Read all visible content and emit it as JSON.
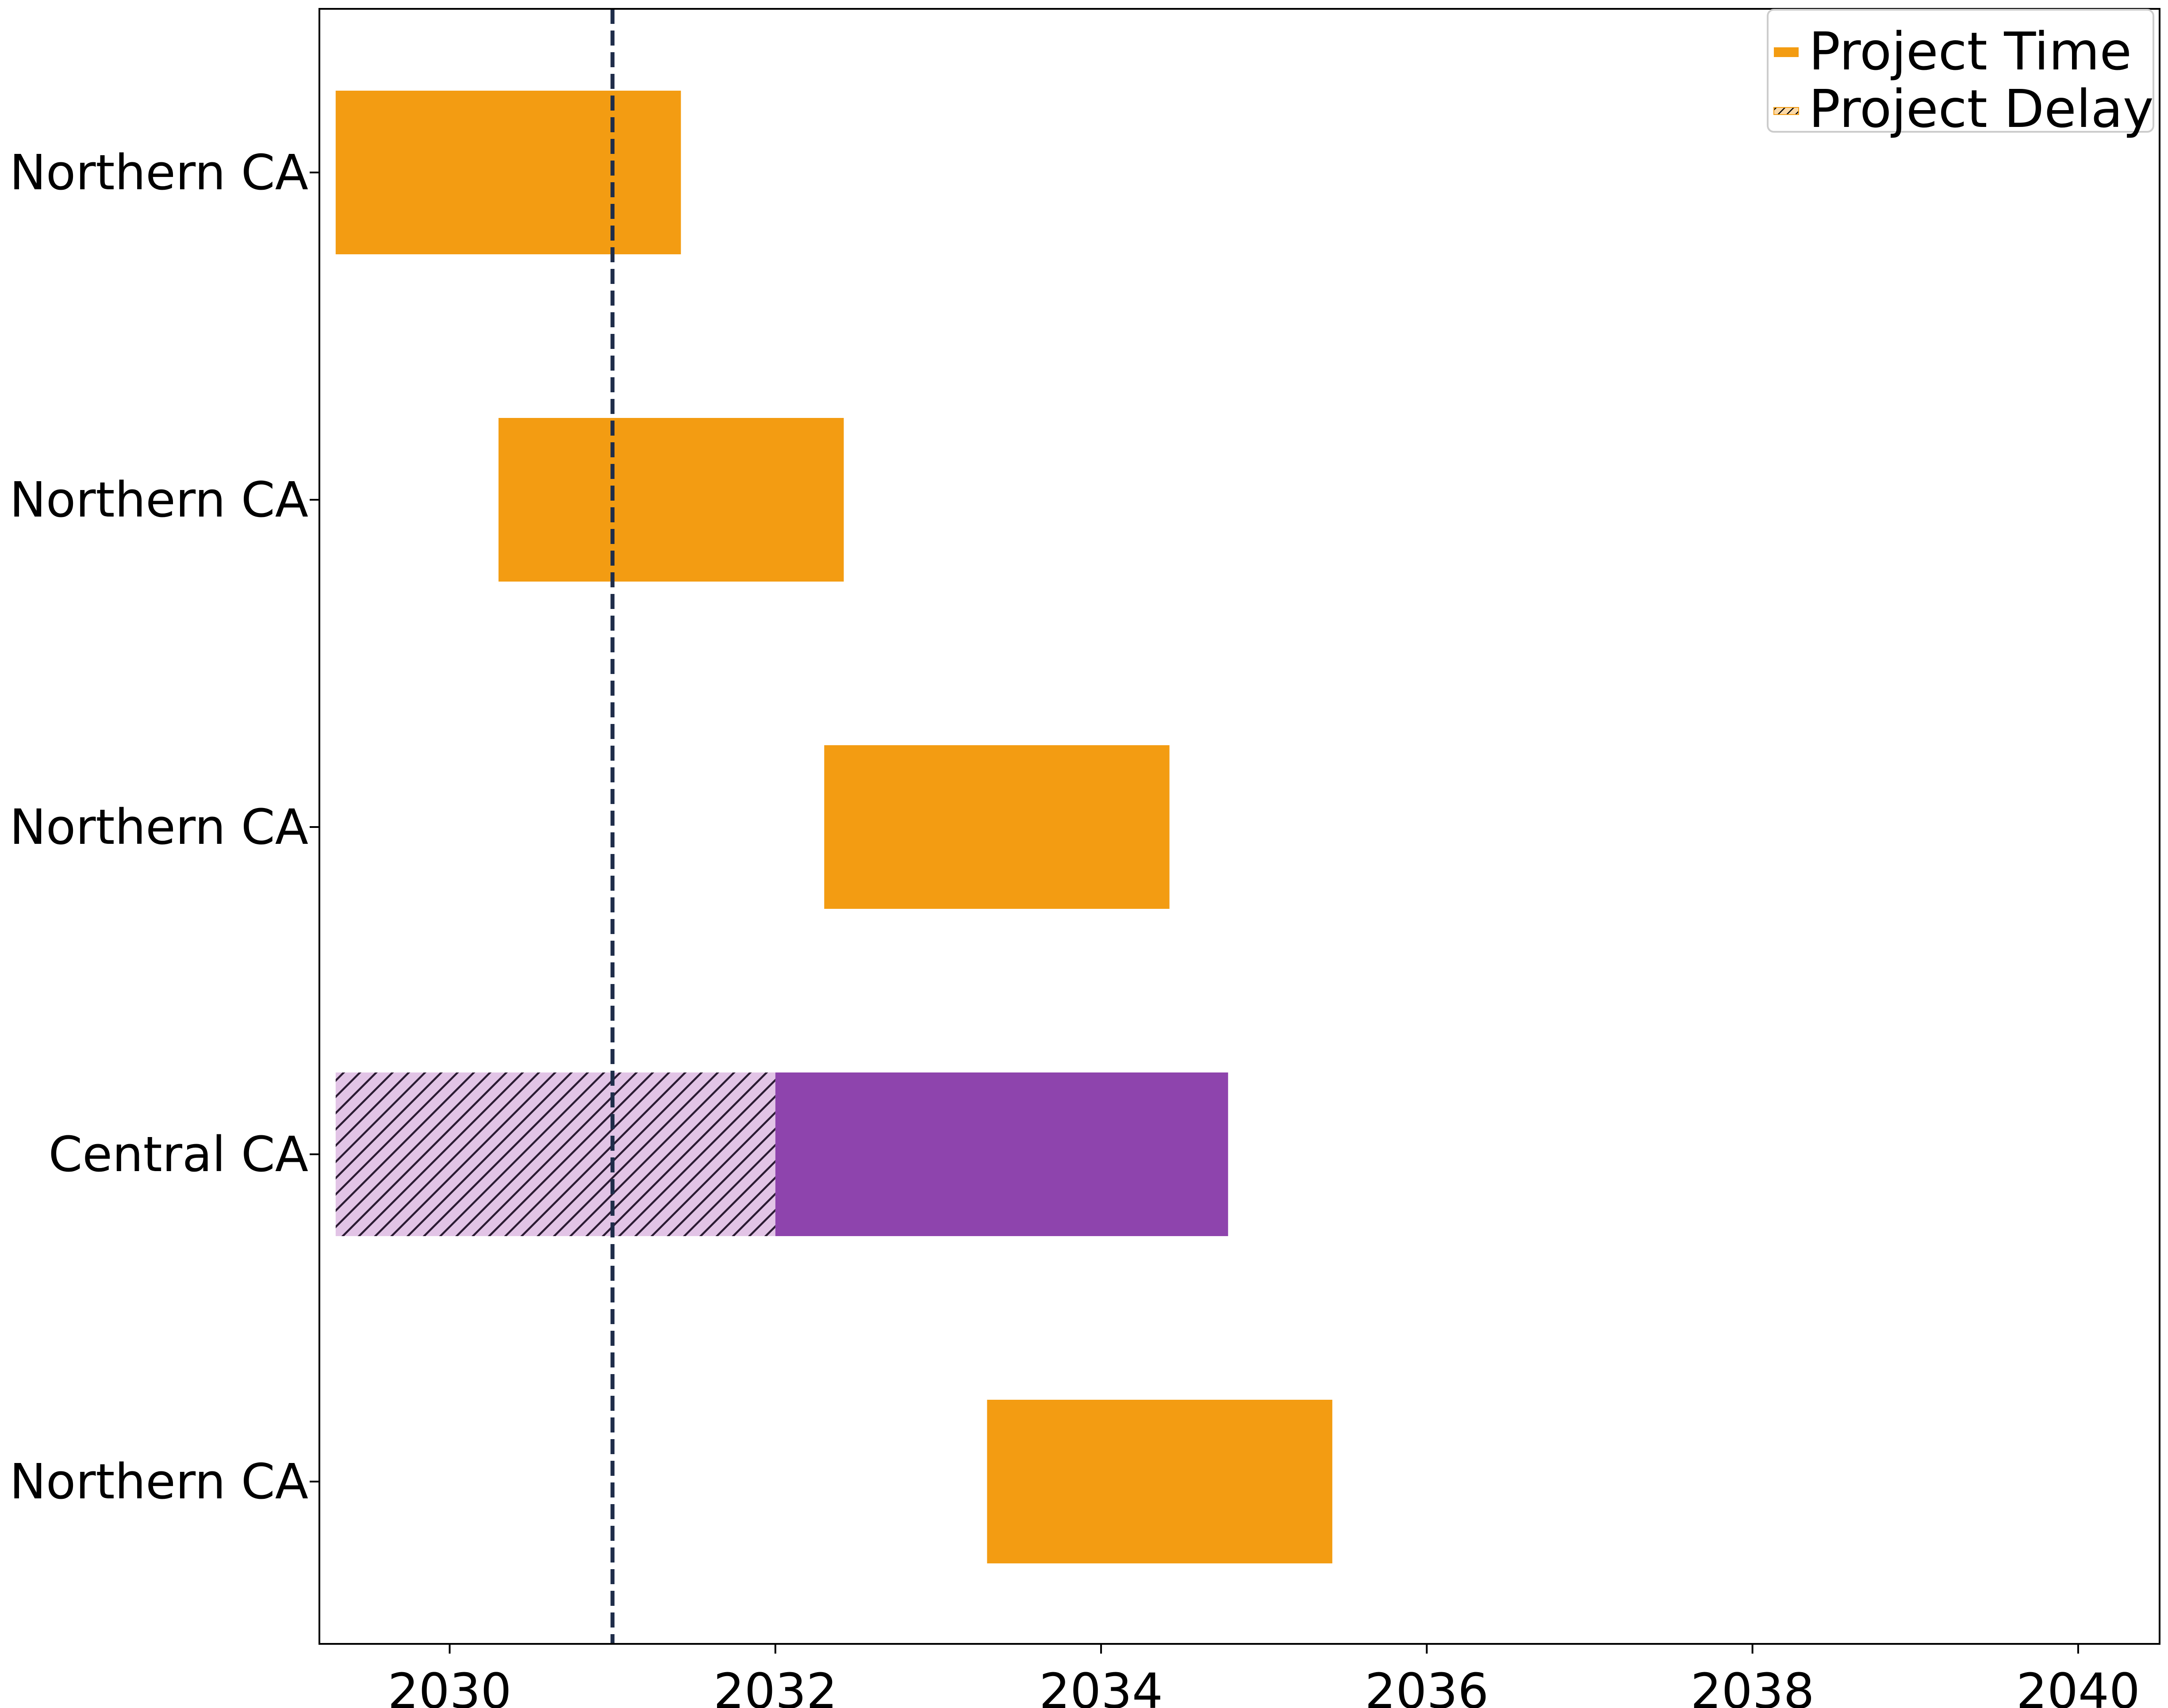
{
  "chart_data": {
    "type": "bar",
    "orientation": "horizontal",
    "title": "",
    "xlabel": "",
    "ylabel": "",
    "xlim": [
      2029.2,
      2040.5
    ],
    "xticks": [
      2030,
      2032,
      2034,
      2036,
      2038,
      2040
    ],
    "xtick_labels": [
      "2030",
      "2032",
      "2034",
      "2036",
      "2038",
      "2040"
    ],
    "grid": false,
    "reference_line": {
      "x": 2031.0,
      "style": "dashed",
      "color": "#1f2d4a"
    },
    "rows": [
      {
        "label": "Northern CA",
        "delay": null,
        "start": 2029.3,
        "end": 2031.42,
        "color": "#f39c12"
      },
      {
        "label": "Northern CA",
        "delay": null,
        "start": 2030.3,
        "end": 2032.42,
        "color": "#f39c12"
      },
      {
        "label": "Northern CA",
        "delay": null,
        "start": 2032.3,
        "end": 2034.42,
        "color": "#f39c12"
      },
      {
        "label": "Central CA",
        "delay": [
          2029.3,
          2032.0
        ],
        "start": 2032.0,
        "end": 2034.78,
        "color": "#8e44ad"
      },
      {
        "label": "Northern CA",
        "delay": null,
        "start": 2033.3,
        "end": 2035.42,
        "color": "#f39c12"
      }
    ],
    "legend": {
      "position": "top-right",
      "entries": [
        {
          "label": "Project Time",
          "style": "solid",
          "color": "#f39c12"
        },
        {
          "label": "Project Delay",
          "style": "hatched",
          "color": "#f39c12"
        }
      ]
    }
  }
}
